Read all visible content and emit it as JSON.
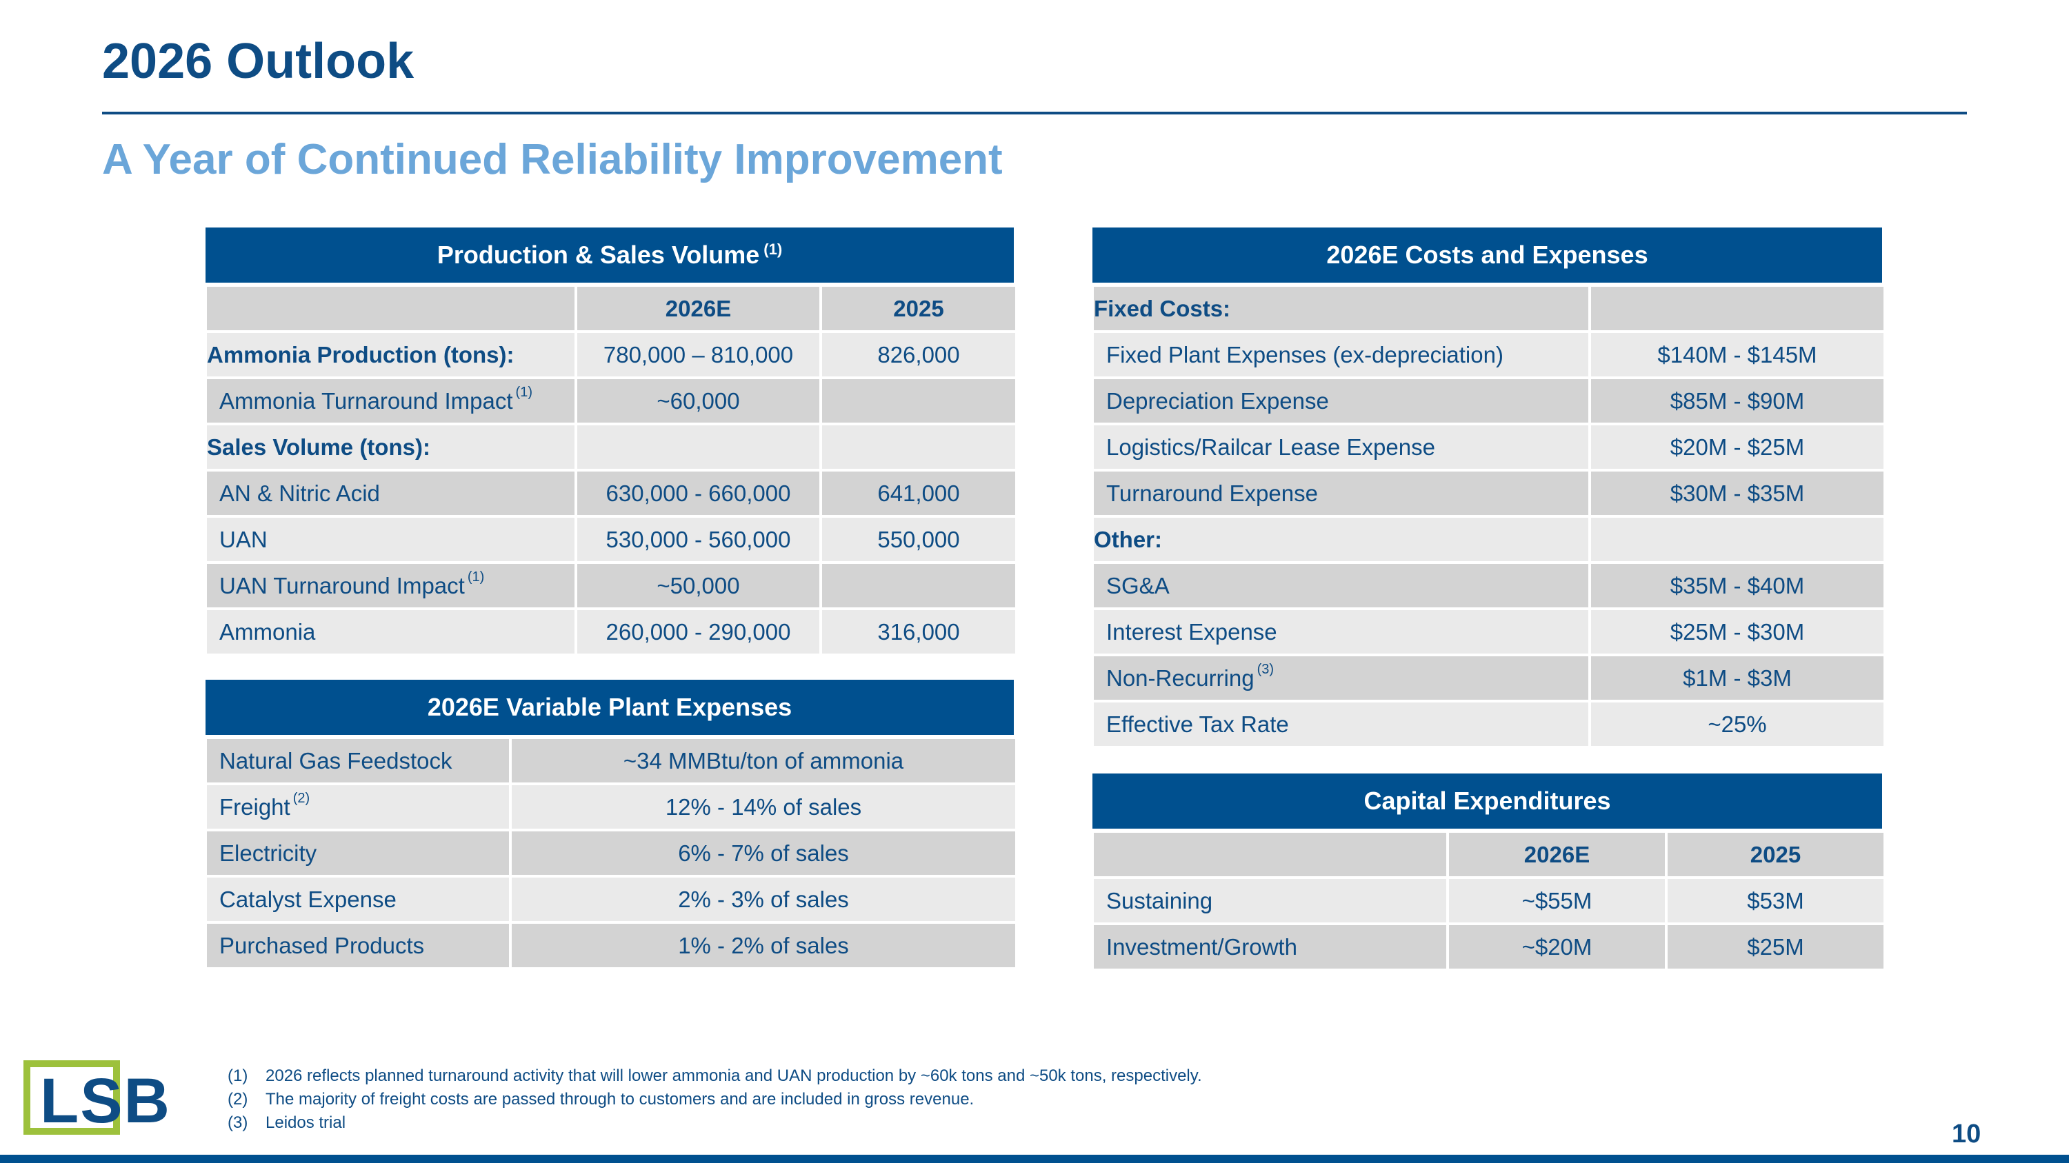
{
  "slide": {
    "title": "2026 Outlook",
    "subtitle": "A Year of Continued Reliability Improvement",
    "page_number": "10"
  },
  "brand": {
    "logo_text": "LSB",
    "primary": "#00508f",
    "accent": "#9dc13c",
    "text": "#0e4c84",
    "subtitle": "#6ba6d9"
  },
  "production": {
    "title": "Production & Sales Volume",
    "title_note": "(1)",
    "columns": [
      "",
      "2026E",
      "2025"
    ],
    "rows": [
      {
        "label": "Ammonia Production (tons):",
        "e2026": "780,000 – 810,000",
        "a2025": "826,000"
      },
      {
        "label": "Ammonia Turnaround Impact",
        "note": "(1)",
        "e2026": "~60,000",
        "a2025": ""
      },
      {
        "label": "Sales Volume (tons):",
        "e2026": "",
        "a2025": ""
      },
      {
        "label": "AN & Nitric Acid",
        "e2026": "630,000 -  660,000",
        "a2025": "641,000"
      },
      {
        "label": "UAN",
        "e2026": "530,000 -  560,000",
        "a2025": "550,000"
      },
      {
        "label": "UAN Turnaround Impact",
        "note": "(1)",
        "e2026": "~50,000",
        "a2025": ""
      },
      {
        "label": "Ammonia",
        "e2026": "260,000 -  290,000",
        "a2025": "316,000"
      }
    ]
  },
  "variable": {
    "title": "2026E Variable Plant Expenses",
    "rows": [
      {
        "label": "Natural Gas Feedstock",
        "value": "~34 MMBtu/ton of ammonia"
      },
      {
        "label": "Freight",
        "note": "(2)",
        "value": "12% - 14% of sales"
      },
      {
        "label": "Electricity",
        "value": "6% - 7% of sales"
      },
      {
        "label": "Catalyst Expense",
        "value": "2% - 3% of sales"
      },
      {
        "label": "Purchased Products",
        "value": "1% - 2% of sales"
      }
    ]
  },
  "costs": {
    "title": "2026E Costs and Expenses",
    "rows": [
      {
        "label": "Fixed Costs:",
        "value": ""
      },
      {
        "label": "Fixed Plant Expenses (ex-depreciation)",
        "value": "$140M - $145M"
      },
      {
        "label": "Depreciation Expense",
        "value": "$85M - $90M"
      },
      {
        "label": "Logistics/Railcar Lease Expense",
        "value": "$20M - $25M"
      },
      {
        "label": "Turnaround Expense",
        "value": "$30M - $35M"
      },
      {
        "label": "Other:",
        "value": ""
      },
      {
        "label": "SG&A",
        "value": "$35M - $40M"
      },
      {
        "label": "Interest Expense",
        "value": "$25M - $30M"
      },
      {
        "label": "Non-Recurring",
        "note": "(3)",
        "value": "$1M - $3M"
      },
      {
        "label": "Effective Tax Rate",
        "value": "~25%"
      }
    ]
  },
  "capex": {
    "title": "Capital Expenditures",
    "columns": [
      "",
      "2026E",
      "2025"
    ],
    "rows": [
      {
        "label": "Sustaining",
        "e2026": "~$55M",
        "a2025": "$53M"
      },
      {
        "label": "Investment/Growth",
        "e2026": "~$20M",
        "a2025": "$25M"
      }
    ]
  },
  "footnotes": [
    {
      "num": "(1)",
      "text": "2026 reflects planned turnaround activity that will lower ammonia and UAN production by ~60k tons and ~50k tons, respectively."
    },
    {
      "num": "(2)",
      "text": "The majority of freight costs are passed through to customers and are included in gross revenue."
    },
    {
      "num": "(3)",
      "text": "Leidos trial"
    }
  ]
}
